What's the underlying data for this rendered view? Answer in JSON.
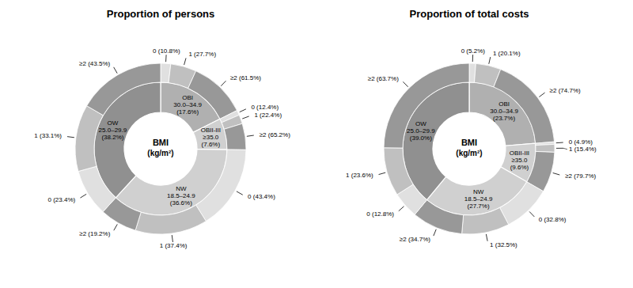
{
  "chart_data": [
    {
      "type": "pie",
      "title": "Proportion of persons",
      "annotations": [
        "BMI",
        "(kg/m²)"
      ],
      "data_labels": true,
      "values": [
        17.6,
        7.6,
        36.6,
        38.2
      ],
      "value_labels": [
        "OBI\n30.0–34.9\n(17.6%)",
        "OBII-III\n≥35.0\n(7.6%)",
        "NW\n18.5–24.9\n(36.6%)",
        "OW\n25.0–29.9\n(38.2%)"
      ],
      "colors": [
        "#b0b0b0",
        "#d0d0d0",
        "#d0d0d0",
        "#909090"
      ],
      "outer_ring": [
        {
          "values": [
            10.8,
            27.7,
            61.5
          ],
          "value_labels": [
            "0 (10.8%)",
            "1 (27.7%)",
            "≥2 (61.5%)"
          ],
          "colors": [
            "#e0e0e0",
            "#c0c0c0",
            "#989898"
          ]
        },
        {
          "values": [
            12.4,
            22.4,
            65.2
          ],
          "value_labels": [
            "0 (12.4%)",
            "1 (22.4%)",
            "≥2 (65.2%)"
          ],
          "colors": [
            "#e0e0e0",
            "#c0c0c0",
            "#989898"
          ]
        },
        {
          "values": [
            43.4,
            37.4,
            19.2
          ],
          "value_labels": [
            "0 (43.4%)",
            "1 (37.4%)",
            "≥2 (19.2%)"
          ],
          "colors": [
            "#e0e0e0",
            "#c0c0c0",
            "#989898"
          ]
        },
        {
          "values": [
            23.4,
            33.1,
            43.5
          ],
          "value_labels": [
            "0 (23.4%)",
            "1 (33.1%)",
            "≥2 (43.5%)"
          ],
          "colors": [
            "#e0e0e0",
            "#c0c0c0",
            "#989898"
          ]
        }
      ]
    },
    {
      "type": "pie",
      "title": "Proportion of total costs",
      "annotations": [
        "BMI",
        "(kg/m²)"
      ],
      "data_labels": true,
      "values": [
        23.7,
        9.6,
        27.7,
        39.0
      ],
      "value_labels": [
        "OBI\n30.0–34.9\n(23.7%)",
        "OBII-III\n≥35.0\n(9.6%)",
        "NW\n18.5–24.9\n(27.7%)",
        "OW\n25.0–29.9\n(39.0%)"
      ],
      "colors": [
        "#b0b0b0",
        "#d0d0d0",
        "#d0d0d0",
        "#909090"
      ],
      "outer_ring": [
        {
          "values": [
            5.2,
            20.1,
            74.7
          ],
          "value_labels": [
            "0 (5.2%)",
            "1 (20.1%)",
            "≥2 (74.7%)"
          ],
          "colors": [
            "#e0e0e0",
            "#c0c0c0",
            "#989898"
          ]
        },
        {
          "values": [
            4.9,
            15.4,
            79.7
          ],
          "value_labels": [
            "0 (4.9%)",
            "1 (15.4%)",
            "≥2 (79.7%)"
          ],
          "colors": [
            "#e0e0e0",
            "#c0c0c0",
            "#989898"
          ]
        },
        {
          "values": [
            32.8,
            32.5,
            34.7
          ],
          "value_labels": [
            "0 (32.8%)",
            "1 (32.5%)",
            "≥2 (34.7%)"
          ],
          "colors": [
            "#e0e0e0",
            "#c0c0c0",
            "#989898"
          ]
        },
        {
          "values": [
            12.8,
            23.6,
            63.7
          ],
          "value_labels": [
            "0 (12.8%)",
            "1 (23.6%)",
            "≥2 (63.7%)"
          ],
          "colors": [
            "#e0e0e0",
            "#c0c0c0",
            "#989898"
          ]
        }
      ]
    }
  ]
}
